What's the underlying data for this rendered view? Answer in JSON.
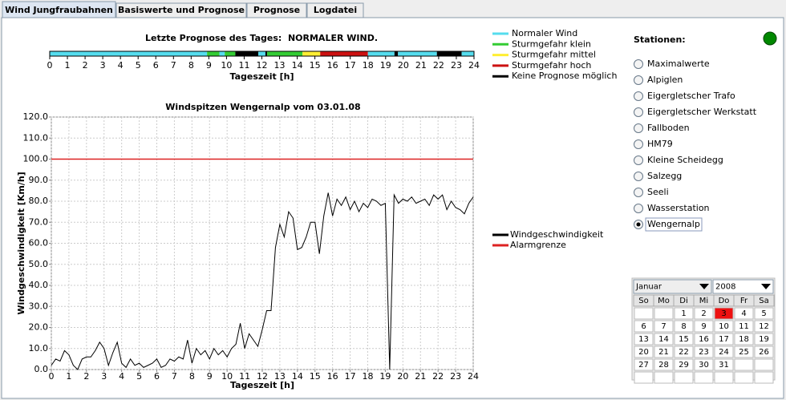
{
  "tabs": [
    "Wind Jungfraubahnen",
    "Basiswerte und Prognose",
    "Prognose",
    "Logdatei"
  ],
  "active_tab": 0,
  "forecast": {
    "title": "Letzte Prognose des Tages:  NORMALER WIND.",
    "xlabel": "Tageszeit [h]",
    "xlim": [
      0,
      24
    ],
    "xticks": [
      0,
      1,
      2,
      3,
      4,
      5,
      6,
      7,
      8,
      9,
      10,
      11,
      12,
      13,
      14,
      15,
      16,
      17,
      18,
      19,
      20,
      21,
      22,
      23,
      24
    ],
    "segments": [
      {
        "from": 0,
        "to": 8.9,
        "color": "#55ddee"
      },
      {
        "from": 8.9,
        "to": 9.6,
        "color": "#33cc33"
      },
      {
        "from": 9.6,
        "to": 9.9,
        "color": "#55ddee"
      },
      {
        "from": 9.9,
        "to": 10.5,
        "color": "#33cc33"
      },
      {
        "from": 10.5,
        "to": 11.8,
        "color": "#000000"
      },
      {
        "from": 11.8,
        "to": 12.2,
        "color": "#55ddee"
      },
      {
        "from": 12.2,
        "to": 12.3,
        "color": "#000000"
      },
      {
        "from": 12.3,
        "to": 14.3,
        "color": "#33cc33"
      },
      {
        "from": 14.3,
        "to": 15.3,
        "color": "#ffee33"
      },
      {
        "from": 15.3,
        "to": 18,
        "color": "#cc1111"
      },
      {
        "from": 18,
        "to": 19.5,
        "color": "#55ddee"
      },
      {
        "from": 19.5,
        "to": 19.7,
        "color": "#000000"
      },
      {
        "from": 19.7,
        "to": 21.9,
        "color": "#55ddee"
      },
      {
        "from": 21.9,
        "to": 23.3,
        "color": "#000000"
      },
      {
        "from": 23.3,
        "to": 24,
        "color": "#55ddee"
      }
    ],
    "legend": [
      {
        "name": "Normaler Wind",
        "color": "#55ddee"
      },
      {
        "name": "Sturmgefahr klein",
        "color": "#33cc33"
      },
      {
        "name": "Sturmgefahr mittel",
        "color": "#ffee33"
      },
      {
        "name": "Sturmgefahr hoch",
        "color": "#cc1111"
      },
      {
        "name": "Keine Prognose möglich",
        "color": "#000000"
      }
    ]
  },
  "chart_data": {
    "type": "line",
    "title": "Windspitzen Wengernalp vom 03.01.08",
    "xlabel": "Tageszeit [h]",
    "ylabel": "Windgeschwindigkeit [Km/h]",
    "x": [
      0,
      0.25,
      0.5,
      0.75,
      1,
      1.25,
      1.5,
      1.75,
      2,
      2.25,
      2.5,
      2.75,
      3,
      3.25,
      3.5,
      3.75,
      4,
      4.25,
      4.5,
      4.75,
      5,
      5.25,
      5.5,
      5.75,
      6,
      6.25,
      6.5,
      6.75,
      7,
      7.25,
      7.5,
      7.75,
      8,
      8.25,
      8.5,
      8.75,
      9,
      9.25,
      9.5,
      9.75,
      10,
      10.25,
      10.5,
      10.75,
      11,
      11.25,
      11.5,
      11.75,
      12,
      12.25,
      12.5,
      12.75,
      13,
      13.25,
      13.5,
      13.75,
      14,
      14.25,
      14.5,
      14.75,
      15,
      15.25,
      15.5,
      15.75,
      16,
      16.25,
      16.5,
      16.75,
      17,
      17.25,
      17.5,
      17.75,
      18,
      18.25,
      18.5,
      18.75,
      19,
      19.25,
      19.5,
      19.75,
      20,
      20.25,
      20.5,
      20.75,
      21,
      21.25,
      21.5,
      21.75,
      22,
      22.25,
      22.5,
      22.75,
      23,
      23.25,
      23.5,
      23.75,
      24
    ],
    "series": [
      {
        "name": "Windgeschwindigkeit",
        "color": "#000000",
        "values": [
          2,
          5,
          4,
          9,
          7,
          2,
          0,
          5,
          6,
          6,
          9,
          13,
          10,
          2,
          8,
          13,
          3,
          1,
          5,
          2,
          3,
          1,
          2,
          3,
          5,
          1,
          2,
          5,
          4,
          6,
          5,
          14,
          3,
          10,
          7,
          9,
          5,
          10,
          7,
          9,
          6,
          10,
          12,
          22,
          10,
          17,
          14,
          11,
          19,
          28,
          28,
          58,
          69,
          63,
          75,
          72,
          57,
          58,
          63,
          70,
          70,
          55,
          73,
          84,
          73,
          81,
          78,
          82,
          76,
          80,
          75,
          79,
          77,
          81,
          80,
          78,
          79,
          0,
          83,
          79,
          81,
          80,
          82,
          79,
          80,
          81,
          78,
          83,
          81,
          83,
          76,
          80,
          77,
          76,
          74,
          79,
          82
        ]
      }
    ],
    "threshold": {
      "name": "Alarmgrenze",
      "value": 100,
      "color": "#dd2222"
    },
    "xlim": [
      0,
      24
    ],
    "ylim": [
      0,
      120
    ],
    "xticks": [
      0,
      1,
      2,
      3,
      4,
      5,
      6,
      7,
      8,
      9,
      10,
      11,
      12,
      13,
      14,
      15,
      16,
      17,
      18,
      19,
      20,
      21,
      22,
      23,
      24
    ],
    "yticks": [
      {
        "value": 0,
        "label": "0.0"
      },
      {
        "value": 10,
        "label": "10.0"
      },
      {
        "value": 20,
        "label": "20.0"
      },
      {
        "value": 30,
        "label": "30.0"
      },
      {
        "value": 40,
        "label": "40.0"
      },
      {
        "value": 50,
        "label": "50.0"
      },
      {
        "value": 60,
        "label": "60.0"
      },
      {
        "value": 70,
        "label": "70.0"
      },
      {
        "value": 80,
        "label": "80.0"
      },
      {
        "value": 90,
        "label": "90.0"
      },
      {
        "value": 100,
        "label": "100.0"
      },
      {
        "value": 110,
        "label": "110.0"
      },
      {
        "value": 120,
        "label": "120.0"
      }
    ],
    "grid": true
  },
  "stations": {
    "title": "Stationen:",
    "items": [
      "Maximalwerte",
      "Alpiglen",
      "Eigergletscher Trafo",
      "Eigergletscher Werkstatt",
      "Fallboden",
      "HM79",
      "Kleine Scheidegg",
      "Salzegg",
      "Seeli",
      "Wasserstation",
      "Wengernalp"
    ],
    "selected": 10,
    "status_color": "#008800"
  },
  "calendar": {
    "month": "Januar",
    "year": "2008",
    "weekdays": [
      "So",
      "Mo",
      "Di",
      "Mi",
      "Do",
      "Fr",
      "Sa"
    ],
    "weeks": [
      [
        null,
        null,
        1,
        2,
        3,
        4,
        5
      ],
      [
        6,
        7,
        8,
        9,
        10,
        11,
        12
      ],
      [
        13,
        14,
        15,
        16,
        17,
        18,
        19
      ],
      [
        20,
        21,
        22,
        23,
        24,
        25,
        26
      ],
      [
        27,
        28,
        29,
        30,
        31,
        null,
        null
      ],
      [
        null,
        null,
        null,
        null,
        null,
        null,
        null
      ]
    ],
    "selected_day": 3
  }
}
